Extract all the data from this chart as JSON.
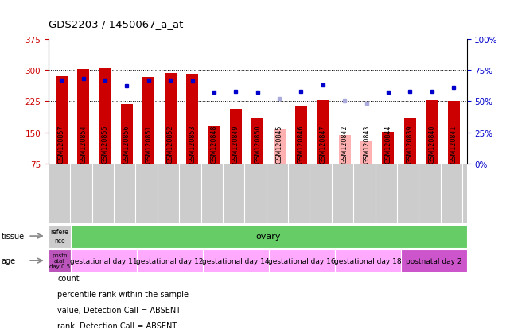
{
  "title": "GDS2203 / 1450067_a_at",
  "samples": [
    "GSM120857",
    "GSM120854",
    "GSM120855",
    "GSM120856",
    "GSM120851",
    "GSM120852",
    "GSM120853",
    "GSM120848",
    "GSM120849",
    "GSM120850",
    "GSM120845",
    "GSM120846",
    "GSM120847",
    "GSM120842",
    "GSM120843",
    "GSM120844",
    "GSM120839",
    "GSM120840",
    "GSM120841"
  ],
  "count_values": [
    285,
    302,
    305,
    218,
    282,
    292,
    290,
    165,
    207,
    183,
    157,
    215,
    228,
    143,
    130,
    152,
    183,
    227,
    226
  ],
  "absent_flags": [
    false,
    false,
    false,
    false,
    false,
    false,
    false,
    false,
    false,
    false,
    true,
    false,
    false,
    true,
    true,
    false,
    false,
    false,
    false
  ],
  "percentile_values": [
    67,
    68,
    67,
    62,
    67,
    67,
    66,
    57,
    58,
    57,
    52,
    58,
    63,
    50,
    48,
    57,
    58,
    58,
    61
  ],
  "absent_rank_flags": [
    false,
    false,
    false,
    false,
    false,
    false,
    false,
    false,
    false,
    false,
    true,
    false,
    false,
    true,
    true,
    false,
    false,
    false,
    false
  ],
  "ylim_left": [
    75,
    375
  ],
  "ylim_right": [
    0,
    100
  ],
  "yticks_left": [
    75,
    150,
    225,
    300,
    375
  ],
  "yticks_right": [
    0,
    25,
    50,
    75,
    100
  ],
  "bar_color_present": "#cc0000",
  "bar_color_absent": "#ffb0b0",
  "dot_color_present": "#0000cc",
  "dot_color_absent": "#aaaadd",
  "tissue_colors": [
    "#cccccc",
    "#66cc66"
  ],
  "tissue_labels": [
    "refere\nnce",
    "ovary"
  ],
  "tissue_spans": [
    1,
    18
  ],
  "age_colors": [
    "#bb55bb",
    "#ffaaff",
    "#ffaaff",
    "#ffaaff",
    "#ffaaff",
    "#ffaaff",
    "#cc55cc"
  ],
  "age_labels": [
    "postn\natal\nday 0.5",
    "gestational day 11",
    "gestational day 12",
    "gestational day 14",
    "gestational day 16",
    "gestational day 18",
    "postnatal day 2"
  ],
  "age_spans": [
    1,
    3,
    3,
    3,
    3,
    3,
    3
  ],
  "left_label_color": "#cc0000",
  "right_label_color": "#0000cc",
  "background_color": "#ffffff",
  "plot_bg_color": "#ffffff",
  "xticklabel_bg": "#cccccc",
  "legend_items": [
    {
      "color": "#cc0000",
      "label": "count"
    },
    {
      "color": "#0000cc",
      "label": "percentile rank within the sample"
    },
    {
      "color": "#ffb0b0",
      "label": "value, Detection Call = ABSENT"
    },
    {
      "color": "#aaaadd",
      "label": "rank, Detection Call = ABSENT"
    }
  ]
}
